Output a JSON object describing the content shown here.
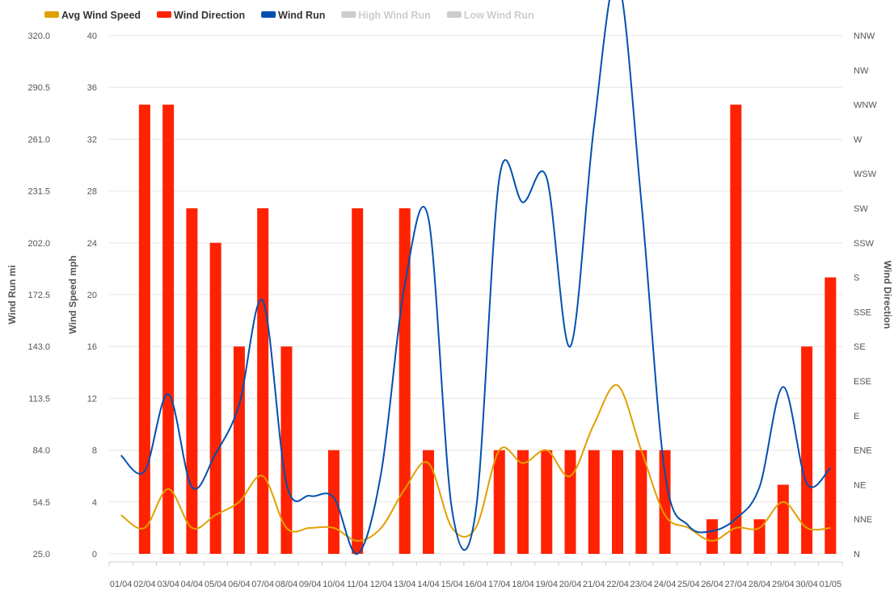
{
  "legend": [
    {
      "label": "Avg Wind Speed",
      "color": "#e0a000",
      "enabled": true
    },
    {
      "label": "Wind Direction",
      "color": "#ff2200",
      "enabled": true
    },
    {
      "label": "Wind Run",
      "color": "#0050b0",
      "enabled": true
    },
    {
      "label": "High Wind Run",
      "color": "#cccccc",
      "enabled": false
    },
    {
      "label": "Low Wind Run",
      "color": "#cccccc",
      "enabled": false
    }
  ],
  "axes": {
    "wind_run_title": "Wind Run mi",
    "wind_speed_title": "Wind Speed mph",
    "wind_direction_title": "Wind Direction",
    "wind_run_ticks": [
      "25.0",
      "54.5",
      "84.0",
      "113.5",
      "143.0",
      "172.5",
      "202.0",
      "231.5",
      "261.0",
      "290.5",
      "320.0"
    ],
    "wind_speed_ticks": [
      "0",
      "4",
      "8",
      "12",
      "16",
      "20",
      "24",
      "28",
      "32",
      "36",
      "40"
    ],
    "direction_ticks": [
      "N",
      "NNE",
      "NE",
      "ENE",
      "E",
      "ESE",
      "SE",
      "SSE",
      "S",
      "SSW",
      "SW",
      "WSW",
      "W",
      "WNW",
      "NW",
      "NNW"
    ]
  },
  "chart_data": {
    "type": "bar",
    "categories": [
      "01/04",
      "02/04",
      "03/04",
      "04/04",
      "05/04",
      "06/04",
      "07/04",
      "08/04",
      "09/04",
      "10/04",
      "11/04",
      "12/04",
      "13/04",
      "14/04",
      "15/04",
      "16/04",
      "17/04",
      "18/04",
      "19/04",
      "20/04",
      "21/04",
      "22/04",
      "23/04",
      "24/04",
      "25/04",
      "26/04",
      "27/04",
      "28/04",
      "29/04",
      "30/04",
      "01/05"
    ],
    "series": [
      {
        "name": "Wind Direction",
        "type": "column",
        "axis": "wind_direction",
        "color": "#ff2200",
        "values": [
          null,
          13,
          13,
          10,
          9,
          6,
          10,
          6,
          null,
          3,
          10,
          null,
          10,
          3,
          null,
          null,
          3,
          3,
          3,
          3,
          3,
          3,
          3,
          3,
          null,
          1,
          13,
          1,
          2,
          6,
          8
        ]
      },
      {
        "name": "Avg Wind Speed",
        "type": "spline",
        "axis": "wind_speed",
        "color": "#e0a000",
        "values": [
          3,
          2,
          5,
          2,
          3,
          4,
          6,
          2,
          2,
          2,
          1,
          2,
          5,
          7,
          2,
          2,
          8,
          7,
          8,
          6,
          10,
          13,
          8,
          3,
          2,
          1,
          2,
          2,
          4,
          2,
          2
        ]
      },
      {
        "name": "Wind Run",
        "type": "spline",
        "axis": "wind_run",
        "color": "#0050b0",
        "values": [
          81,
          72,
          116,
          63,
          82,
          110,
          169,
          65,
          58,
          57,
          25,
          71,
          178,
          216,
          50,
          49,
          239,
          225,
          239,
          143,
          268,
          352,
          226,
          71,
          41,
          38,
          45,
          63,
          120,
          65,
          74
        ]
      }
    ],
    "wind_run_axis": {
      "min": 25.0,
      "max": 320.0
    },
    "wind_speed_axis": {
      "min": 0,
      "max": 40
    },
    "wind_direction_axis": {
      "min": 0,
      "max": 15
    }
  }
}
